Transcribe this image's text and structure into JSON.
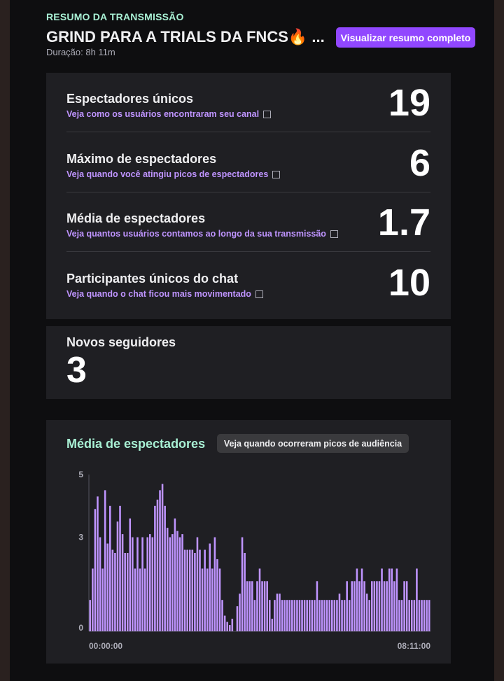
{
  "header": {
    "eyebrow": "RESUMO DA TRANSMISSÃO",
    "title": "GRIND PARA A TRIALS DA FNCS🔥 ...",
    "duration": "Duração: 8h 11m",
    "summary_button": "Visualizar resumo completo"
  },
  "stats": [
    {
      "label": "Espectadores únicos",
      "link": "Veja como os usuários encontraram seu canal",
      "value": "19"
    },
    {
      "label": "Máximo de espectadores",
      "link": "Veja quando você atingiu picos de espectadores",
      "value": "6"
    },
    {
      "label": "Média de espectadores",
      "link": "Veja quantos usuários contamos ao longo da sua transmissão",
      "value": "1.7"
    },
    {
      "label": "Participantes únicos do chat",
      "link": "Veja quando o chat ficou mais movimentado",
      "value": "10"
    }
  ],
  "followers": {
    "label": "Novos seguidores",
    "value": "3"
  },
  "viewers_chart": {
    "title": "Média de espectadores",
    "button": "Veja quando ocorreram picos de audiência"
  },
  "colors": {
    "accent": "#9147ff",
    "bar": "#bf94ff",
    "heading_green": "#a8f0d4"
  },
  "chart_data": {
    "type": "bar",
    "title": "Média de espectadores",
    "x_start_label": "00:00:00",
    "x_end_label": "08:11:00",
    "y_ticks": [
      0,
      3,
      5
    ],
    "ylim": [
      0,
      5
    ],
    "values": [
      1,
      2,
      3.9,
      4.3,
      3,
      2,
      4.5,
      2.8,
      4,
      2.6,
      2.5,
      3.5,
      4,
      3.1,
      2.5,
      2.5,
      3.6,
      3,
      2,
      3,
      2,
      3,
      2,
      3,
      3.1,
      3,
      4,
      4.2,
      4.5,
      4.7,
      4,
      3.3,
      3,
      3.1,
      3.6,
      3.2,
      3,
      3.1,
      2.6,
      2.6,
      2.6,
      2.6,
      2.5,
      3,
      2.6,
      2,
      2.6,
      2,
      2.8,
      2,
      3,
      2.3,
      2,
      1,
      0.5,
      0.3,
      0.2,
      0.4,
      0,
      0.8,
      1.2,
      3,
      2.5,
      1.6,
      1.6,
      1.6,
      1,
      1.6,
      2,
      1.6,
      1.6,
      1.6,
      1,
      0.4,
      1,
      1.2,
      1.2,
      1,
      1,
      1,
      1,
      1,
      1,
      1,
      1,
      1,
      1,
      1,
      1,
      1,
      1,
      1.6,
      1,
      1,
      1,
      1,
      1,
      1,
      1,
      1,
      1.2,
      1,
      1,
      1.6,
      1,
      1.6,
      1.6,
      2,
      1.6,
      2,
      1.6,
      1.2,
      1,
      1.6,
      1.6,
      1.6,
      1.6,
      2,
      1.6,
      1.6,
      2,
      2,
      1.6,
      2,
      1,
      1,
      1.6,
      1.6,
      1,
      1,
      1,
      2,
      1,
      1,
      1,
      1,
      1
    ]
  }
}
